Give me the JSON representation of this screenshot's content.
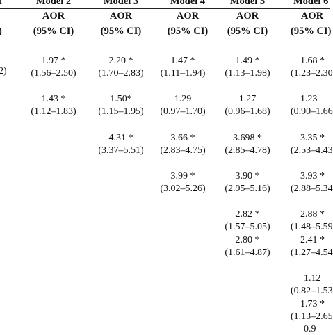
{
  "table": {
    "model_headers": {
      "m1_fragment": "1",
      "m2": "Model 2",
      "m3": "Model 3",
      "m4": "Model 4",
      "m5": "Model 5",
      "m6": "Model 6"
    },
    "aor_label": "AOR",
    "ci_label": "(95% CI)",
    "ci_fragment_m1": ")",
    "m1_value_fragment": "2)",
    "rows": {
      "r1": {
        "m2": {
          "aor": "1.97 *",
          "ci": "(1.56–2.50)"
        },
        "m3": {
          "aor": "2.20 *",
          "ci": "(1.70–2.83)"
        },
        "m4": {
          "aor": "1.47 *",
          "ci": "(1.11–1.94)"
        },
        "m5": {
          "aor": "1.49 *",
          "ci": "(1.13–1.98)"
        },
        "m6": {
          "aor": "1.68 *",
          "ci": "(1.23–2.30"
        }
      },
      "r2": {
        "m2": {
          "aor": "1.43 *",
          "ci": "(1.12–1.83)"
        },
        "m3": {
          "aor": "1.50*",
          "ci": "(1.15–1.95)"
        },
        "m4": {
          "aor": "1.29",
          "ci": "(0.97–1.70)"
        },
        "m5": {
          "aor": "1.27",
          "ci": "(0.96–1.68)"
        },
        "m6": {
          "aor": "1.23",
          "ci": "(0.90–1.66"
        }
      },
      "r3": {
        "m3": {
          "aor": "4.31 *",
          "ci": "(3.37–5.51)"
        },
        "m4": {
          "aor": "3.66 *",
          "ci": "(2.83–4.75)"
        },
        "m5": {
          "aor": "3.698 *",
          "ci": "(2.85–4.78)"
        },
        "m6": {
          "aor": "3.35 *",
          "ci": "(2.53–4.43"
        }
      },
      "r4": {
        "m4": {
          "aor": "3.99 *",
          "ci": "(3.02–5.26)"
        },
        "m5": {
          "aor": "3.90 *",
          "ci": "(2.95–5.16)"
        },
        "m6": {
          "aor": "3.93 *",
          "ci": "(2.88–5.34"
        }
      },
      "r5": {
        "m5": {
          "aor": "2.82 *",
          "ci": "(1.57–5.05)"
        },
        "m6": {
          "aor": "2.88 *",
          "ci": "(1.48–5.59"
        }
      },
      "r6": {
        "m5": {
          "aor": "2.80 *",
          "ci": "(1.61–4.87)"
        },
        "m6": {
          "aor": "2.41 *",
          "ci": "(1.27–4.54"
        }
      },
      "r7": {
        "m6": {
          "aor": "1.12",
          "ci": "(0.82–1.53"
        }
      },
      "r8": {
        "m6": {
          "aor": "1.73 *",
          "ci": "(1.13–2.65"
        }
      },
      "r9": {
        "m6": {
          "aor": "0.9"
        }
      }
    }
  }
}
